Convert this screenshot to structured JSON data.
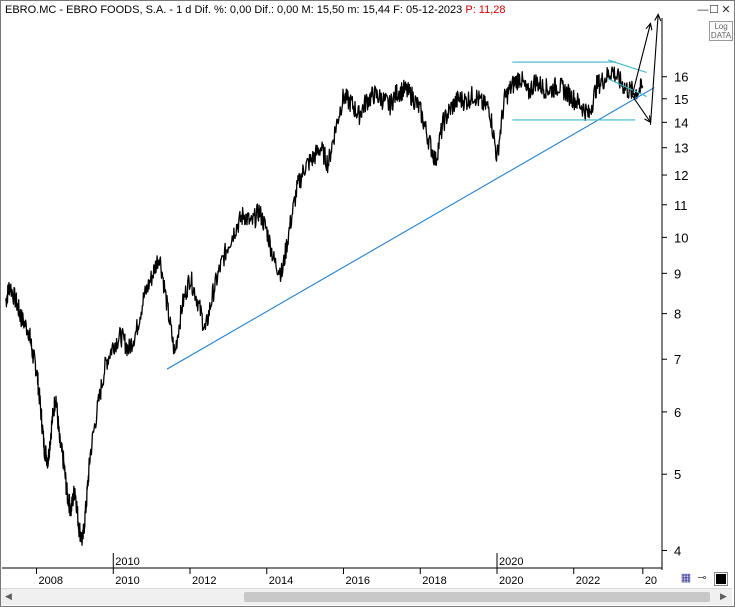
{
  "window": {
    "title_main": "EBRO.MC - EBRO FOODS, S.A. -  1 d  Dif. %: 0,00  Dif.: 0,00  M: 15,50  m: 15,44  F: 05-12-2023",
    "title_price": "  P: 11,28",
    "minimize": "—",
    "maximize": "☐",
    "close": "✕"
  },
  "log_button": {
    "line1": "Log",
    "line2": "DATA"
  },
  "toolbar": {
    "save_icon": "floppy-disk-icon",
    "pin_icon": "pin-icon",
    "color_icon": "color-square-icon"
  },
  "colors": {
    "price": "#000000",
    "trendline": "#1e7fd6",
    "channel": "#3ab8c8",
    "grid": "#d8d8d8"
  },
  "chart_data": {
    "type": "line",
    "yscale": "log",
    "ylim": [
      3.8,
      19.0
    ],
    "xlim": [
      2007.1,
      2024.3
    ],
    "y_ticks": [
      4,
      5,
      6,
      7,
      8,
      9,
      10,
      11,
      12,
      13,
      14,
      15,
      16
    ],
    "x_ticks": [
      "2008",
      "2010",
      "2012",
      "2014",
      "2016",
      "2018",
      "2020",
      "2022",
      "20"
    ],
    "x_tick_positions": [
      2008,
      2010,
      2012,
      2014,
      2016,
      2018,
      2020,
      2022,
      2023.8
    ],
    "x_markers": [
      {
        "label": "2010",
        "x": 2010
      },
      {
        "label": "2020",
        "x": 2020
      }
    ],
    "series": [
      {
        "x": [
          2007.2,
          2007.3,
          2007.5,
          2007.6,
          2007.8,
          2007.9,
          2008.0,
          2008.1,
          2008.2,
          2008.3,
          2008.4,
          2008.5,
          2008.6,
          2008.7,
          2008.8,
          2008.9,
          2009.0,
          2009.1,
          2009.2,
          2009.3,
          2009.4,
          2009.6,
          2009.8,
          2010.0,
          2010.2,
          2010.4,
          2010.6,
          2010.8,
          2011.0,
          2011.2,
          2011.4,
          2011.6,
          2011.8,
          2012.0,
          2012.2,
          2012.4,
          2012.6,
          2012.8,
          2013.0,
          2013.2,
          2013.4,
          2013.6,
          2013.8,
          2014.0,
          2014.2,
          2014.4,
          2014.6,
          2014.8,
          2015.0,
          2015.2,
          2015.4,
          2015.6,
          2015.8,
          2016.0,
          2016.2,
          2016.4,
          2016.6,
          2016.8,
          2017.0,
          2017.2,
          2017.4,
          2017.6,
          2017.8,
          2018.0,
          2018.2,
          2018.4,
          2018.6,
          2018.8,
          2019.0,
          2019.2,
          2019.4,
          2019.6,
          2019.8,
          2020.0,
          2020.2,
          2020.4,
          2020.6,
          2020.8,
          2021.0,
          2021.2,
          2021.4,
          2021.6,
          2021.8,
          2022.0,
          2022.2,
          2022.4,
          2022.6,
          2022.8,
          2023.0,
          2023.2,
          2023.4,
          2023.6,
          2023.8
        ],
        "y": [
          8.3,
          8.7,
          8.2,
          7.9,
          7.6,
          7.1,
          6.8,
          6.1,
          5.4,
          5.2,
          5.8,
          6.3,
          5.5,
          5.2,
          4.7,
          4.5,
          4.8,
          4.3,
          4.1,
          4.6,
          5.3,
          6.1,
          6.9,
          7.3,
          7.5,
          7.2,
          7.6,
          8.4,
          8.9,
          9.5,
          8.2,
          7.1,
          8.2,
          8.9,
          8.3,
          7.6,
          8.5,
          9.2,
          9.8,
          10.3,
          10.7,
          10.4,
          10.8,
          10.2,
          9.3,
          9.0,
          10.3,
          11.6,
          12.3,
          12.6,
          13.0,
          12.4,
          13.8,
          15.1,
          14.8,
          14.3,
          14.9,
          15.2,
          15.0,
          14.7,
          15.3,
          15.4,
          15.1,
          14.5,
          13.4,
          12.5,
          14.0,
          14.6,
          15.0,
          14.9,
          15.2,
          14.8,
          14.6,
          12.6,
          15.0,
          15.6,
          16.0,
          15.2,
          15.8,
          15.5,
          15.4,
          15.6,
          15.3,
          15.0,
          14.7,
          14.3,
          15.6,
          15.9,
          16.3,
          15.8,
          15.4,
          15.3,
          15.5
        ]
      }
    ],
    "annotations": [
      {
        "kind": "trendline",
        "x": [
          2011.4,
          2024.1
        ],
        "y": [
          6.8,
          15.5
        ]
      },
      {
        "kind": "channel-top",
        "x": [
          2020.4,
          2023.1
        ],
        "y": [
          16.7,
          16.7
        ]
      },
      {
        "kind": "channel-bottom",
        "x": [
          2020.4,
          2023.6
        ],
        "y": [
          14.1,
          14.1
        ]
      },
      {
        "kind": "wedge-upper",
        "x": [
          2022.9,
          2023.9
        ],
        "y": [
          16.8,
          16.2
        ]
      },
      {
        "kind": "wedge-lower",
        "x": [
          2022.9,
          2023.9
        ],
        "y": [
          15.9,
          15.1
        ]
      },
      {
        "kind": "arrow-up",
        "x": [
          2023.5,
          2024.0
        ],
        "y": [
          15.0,
          18.7
        ]
      },
      {
        "kind": "arrow-up",
        "x": [
          2024.0,
          2024.2
        ],
        "y": [
          13.9,
          19.2
        ]
      },
      {
        "kind": "arrow-down",
        "x": [
          2023.5,
          2024.0
        ],
        "y": [
          15.2,
          14.0
        ]
      }
    ]
  }
}
